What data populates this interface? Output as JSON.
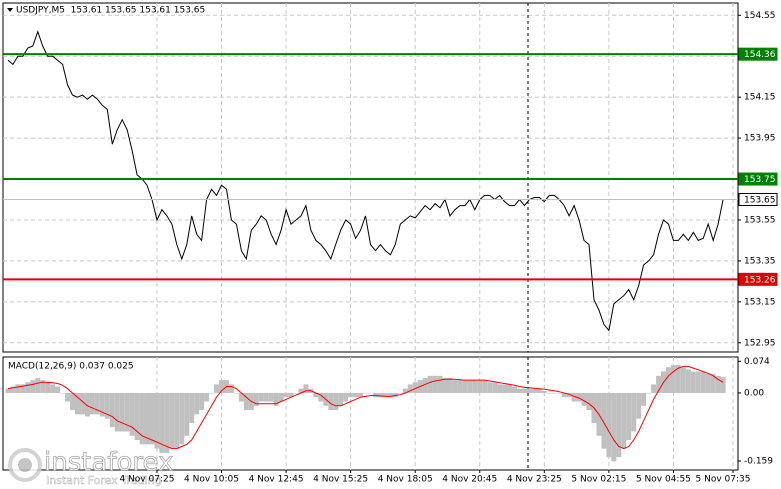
{
  "chart_data": [
    {
      "type": "line",
      "title": "USDJPY,M5  153.61 153.65 153.61 153.65",
      "ylim": [
        152.905,
        154.61
      ],
      "yticks": [
        154.55,
        154.35,
        154.15,
        153.95,
        153.75,
        153.55,
        153.35,
        153.15,
        152.95
      ],
      "grid": true,
      "series": [
        {
          "name": "USDJPY",
          "color": "#000000",
          "values": [
            154.33,
            154.31,
            154.35,
            154.35,
            154.39,
            154.4,
            154.47,
            154.4,
            154.35,
            154.35,
            154.33,
            154.31,
            154.21,
            154.16,
            154.15,
            154.16,
            154.14,
            154.16,
            154.14,
            154.11,
            154.09,
            153.92,
            153.99,
            154.04,
            153.99,
            153.89,
            153.77,
            153.75,
            153.72,
            153.65,
            153.55,
            153.6,
            153.57,
            153.53,
            153.43,
            153.36,
            153.43,
            153.57,
            153.48,
            153.45,
            153.65,
            153.7,
            153.67,
            153.72,
            153.7,
            153.55,
            153.53,
            153.4,
            153.36,
            153.5,
            153.53,
            153.57,
            153.55,
            153.48,
            153.43,
            153.5,
            153.6,
            153.53,
            153.55,
            153.57,
            153.62,
            153.5,
            153.45,
            153.43,
            153.4,
            153.36,
            153.43,
            153.5,
            153.55,
            153.53,
            153.46,
            153.5,
            153.57,
            153.43,
            153.4,
            153.43,
            153.4,
            153.38,
            153.43,
            153.53,
            153.55,
            153.57,
            153.56,
            153.59,
            153.62,
            153.6,
            153.63,
            153.61,
            153.65,
            153.57,
            153.6,
            153.62,
            153.62,
            153.65,
            153.6,
            153.65,
            153.67,
            153.67,
            153.65,
            153.67,
            153.64,
            153.62,
            153.62,
            153.65,
            153.62,
            153.65,
            153.66,
            153.66,
            153.64,
            153.67,
            153.67,
            153.65,
            153.62,
            153.57,
            153.62,
            153.55,
            153.45,
            153.43,
            153.16,
            153.11,
            153.04,
            153.01,
            153.14,
            153.16,
            153.18,
            153.21,
            153.16,
            153.23,
            153.33,
            153.35,
            153.38,
            153.48,
            153.55,
            153.53,
            153.45,
            153.45,
            153.48,
            153.45,
            153.49,
            153.45,
            153.46,
            153.53,
            153.45,
            153.53,
            153.65
          ]
        }
      ],
      "levels": [
        {
          "value": 154.36,
          "color": "#008000"
        },
        {
          "value": 153.75,
          "color": "#008000"
        },
        {
          "value": 153.65,
          "color": "#c0c0c0"
        },
        {
          "value": 153.26,
          "color": "#e00000"
        }
      ]
    },
    {
      "type": "macd",
      "title": "MACD(12,26,9) 0.037 0.025",
      "ylim": [
        -0.18,
        0.084
      ],
      "yticks": [
        0.074,
        {
          "value": 0,
          "label": "0.00"
        },
        -0.159
      ],
      "xlim": [
        -1,
        147
      ],
      "xticks": [
        {
          "value": 30,
          "label": "4 Nov 07:25"
        },
        {
          "value": 43,
          "label": "4 Nov 10:05"
        },
        {
          "value": 56,
          "label": "4 Nov 12:45"
        },
        {
          "value": 69,
          "label": "4 Nov 15:25"
        },
        {
          "value": 82,
          "label": "4 Nov 18:05"
        },
        {
          "value": 95,
          "label": "4 Nov 20:45"
        },
        {
          "value": 108,
          "label": "4 Nov 23:25"
        },
        {
          "value": 121,
          "label": "5 Nov 02:15"
        },
        {
          "value": 134,
          "label": "5 Nov 04:55"
        },
        {
          "value": 146,
          "label": "5 Nov 07:35"
        }
      ],
      "series": [
        {
          "name": "MACD",
          "color": "#c0c0c0",
          "values": [
            0.01,
            0.015,
            0.02,
            0.02,
            0.025,
            0.03,
            0.035,
            0.03,
            0.025,
            0.02,
            0.015,
            0.0,
            -0.02,
            -0.04,
            -0.05,
            -0.05,
            -0.055,
            -0.05,
            -0.05,
            -0.055,
            -0.06,
            -0.08,
            -0.09,
            -0.09,
            -0.09,
            -0.1,
            -0.11,
            -0.12,
            -0.12,
            -0.12,
            -0.13,
            -0.14,
            -0.14,
            -0.13,
            -0.13,
            -0.12,
            -0.1,
            -0.07,
            -0.05,
            -0.04,
            -0.02,
            0.0,
            0.02,
            0.03,
            0.03,
            0.02,
            0.0,
            -0.02,
            -0.04,
            -0.04,
            -0.03,
            -0.02,
            -0.02,
            -0.02,
            -0.03,
            -0.02,
            -0.01,
            -0.01,
            0.0,
            0.01,
            0.02,
            0.01,
            -0.01,
            -0.02,
            -0.03,
            -0.04,
            -0.04,
            -0.03,
            -0.02,
            -0.01,
            -0.01,
            -0.01,
            0.0,
            0.0,
            -0.01,
            -0.01,
            -0.01,
            -0.01,
            -0.01,
            0.0,
            0.01,
            0.02,
            0.025,
            0.03,
            0.035,
            0.04,
            0.04,
            0.04,
            0.035,
            0.035,
            0.03,
            0.03,
            0.03,
            0.03,
            0.03,
            0.03,
            0.03,
            0.025,
            0.025,
            0.02,
            0.02,
            0.02,
            0.015,
            0.01,
            0.01,
            0.01,
            0.01,
            0.01,
            0.005,
            0.0,
            0.0,
            0.0,
            -0.01,
            -0.01,
            -0.02,
            -0.02,
            -0.03,
            -0.04,
            -0.07,
            -0.1,
            -0.13,
            -0.15,
            -0.16,
            -0.15,
            -0.13,
            -0.11,
            -0.09,
            -0.06,
            -0.03,
            0.0,
            0.02,
            0.04,
            0.05,
            0.06,
            0.065,
            0.065,
            0.06,
            0.055,
            0.05,
            0.05,
            0.05,
            0.045,
            0.045,
            0.04,
            0.037
          ]
        },
        {
          "name": "Signal",
          "color": "#ff0000",
          "values": [
            0.01,
            0.012,
            0.014,
            0.016,
            0.018,
            0.02,
            0.023,
            0.025,
            0.025,
            0.024,
            0.022,
            0.018,
            0.01,
            0.0,
            -0.01,
            -0.02,
            -0.03,
            -0.035,
            -0.04,
            -0.045,
            -0.05,
            -0.055,
            -0.065,
            -0.07,
            -0.075,
            -0.08,
            -0.09,
            -0.1,
            -0.105,
            -0.11,
            -0.115,
            -0.12,
            -0.125,
            -0.13,
            -0.13,
            -0.125,
            -0.12,
            -0.11,
            -0.09,
            -0.07,
            -0.05,
            -0.03,
            -0.01,
            0.005,
            0.015,
            0.015,
            0.01,
            0.0,
            -0.01,
            -0.02,
            -0.025,
            -0.025,
            -0.025,
            -0.025,
            -0.025,
            -0.02,
            -0.015,
            -0.01,
            -0.005,
            0.0,
            0.005,
            0.005,
            0.0,
            -0.005,
            -0.015,
            -0.025,
            -0.03,
            -0.03,
            -0.025,
            -0.02,
            -0.015,
            -0.01,
            -0.008,
            -0.006,
            -0.006,
            -0.007,
            -0.008,
            -0.008,
            -0.006,
            -0.004,
            0.0,
            0.005,
            0.01,
            0.015,
            0.02,
            0.025,
            0.028,
            0.03,
            0.032,
            0.032,
            0.032,
            0.031,
            0.03,
            0.03,
            0.03,
            0.03,
            0.03,
            0.028,
            0.026,
            0.024,
            0.022,
            0.02,
            0.018,
            0.015,
            0.013,
            0.012,
            0.011,
            0.01,
            0.009,
            0.007,
            0.005,
            0.003,
            0.0,
            -0.003,
            -0.008,
            -0.012,
            -0.018,
            -0.025,
            -0.035,
            -0.05,
            -0.07,
            -0.09,
            -0.11,
            -0.125,
            -0.13,
            -0.125,
            -0.11,
            -0.09,
            -0.065,
            -0.04,
            -0.015,
            0.005,
            0.025,
            0.04,
            0.05,
            0.058,
            0.062,
            0.062,
            0.058,
            0.054,
            0.05,
            0.046,
            0.04,
            0.032,
            0.025
          ]
        }
      ]
    }
  ],
  "watermark": {
    "brand": "instaforex",
    "slogan": "Instant Forex Trading"
  }
}
